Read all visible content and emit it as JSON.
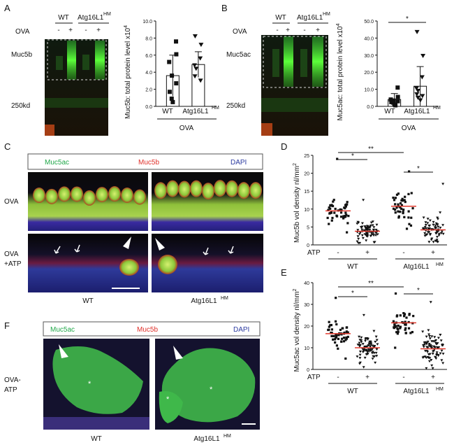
{
  "panels": {
    "A": {
      "letter": "A",
      "blot": {
        "headers": [
          "WT",
          "Atg16L1",
          "HM"
        ],
        "treatment_label": "OVA",
        "lanes": [
          "-",
          "+",
          "-",
          "+"
        ],
        "band_label": "Muc5b",
        "marker": "250kd"
      },
      "chart": {
        "ylabel_main": "Muc5b: total protein level x10",
        "ylabel_exp": "4",
        "categories": [
          "WT",
          "Atg16L1",
          "HM"
        ],
        "group_label": "OVA"
      }
    },
    "B": {
      "letter": "B",
      "blot": {
        "headers": [
          "WT",
          "Atg16L1",
          "HM"
        ],
        "treatment_label": "OVA",
        "lanes": [
          "-",
          "+",
          "-",
          "+"
        ],
        "band_label": "Muc5ac",
        "marker": "250kd"
      },
      "chart": {
        "ylabel_main": "Muc5ac: total protein level x10",
        "ylabel_exp": "4",
        "categories": [
          "WT",
          "Atg16L1",
          "HM"
        ],
        "group_label": "OVA",
        "significance": "*"
      }
    },
    "C": {
      "letter": "C",
      "legend": [
        "Muc5ac",
        "Muc5b",
        "DAPI"
      ],
      "legend_colors": [
        "#22a84a",
        "#e0302a",
        "#2b3aa0"
      ],
      "rows": [
        "OVA",
        "OVA",
        "+ATP"
      ],
      "columns": [
        "WT",
        "Atg16L1",
        "HM"
      ]
    },
    "D": {
      "letter": "D",
      "ylabel": "Muc5b vol density nl/mm",
      "ylabel_exp": "2",
      "treatment_label": "ATP",
      "lanes": [
        "-",
        "+",
        "-",
        "+"
      ],
      "groups": [
        "WT",
        "Atg16L1",
        "HM"
      ],
      "significance": [
        "*",
        "**",
        "*"
      ]
    },
    "E": {
      "letter": "E",
      "ylabel": "Muc5ac vol density nl/mm",
      "ylabel_exp": "2",
      "treatment_label": "ATP",
      "lanes": [
        "-",
        "+",
        "-",
        "+"
      ],
      "groups": [
        "WT",
        "Atg16L1",
        "HM"
      ],
      "significance": [
        "*",
        "**",
        "*"
      ]
    },
    "F": {
      "letter": "F",
      "legend": [
        "Muc5ac",
        "Muc5b",
        "DAPI"
      ],
      "legend_colors": [
        "#22a84a",
        "#e0302a",
        "#2b3aa0"
      ],
      "row": [
        "OVA-",
        "ATP"
      ],
      "columns": [
        "WT",
        "Atg16L1",
        "HM"
      ],
      "asterisk": "*"
    }
  },
  "chart_data": [
    {
      "type": "bar",
      "panel": "A",
      "categories": [
        "WT",
        "Atg16L1 HM"
      ],
      "values": [
        3.6,
        4.9
      ],
      "errors": [
        2.4,
        1.5
      ],
      "points": [
        [
          7.6,
          6.1,
          5.2,
          3.6,
          2.7,
          1.7,
          0.9,
          0.5
        ],
        [
          8.2,
          7.2,
          5.6,
          4.8,
          4.4,
          3.5,
          3.0
        ]
      ],
      "ylim": [
        0,
        10
      ],
      "yticks": [
        "0.0",
        "2.0",
        "4.0",
        "6.0",
        "8.0",
        "10.0"
      ]
    },
    {
      "type": "bar",
      "panel": "B",
      "categories": [
        "WT",
        "Atg16L1 HM"
      ],
      "values": [
        4.0,
        11.8
      ],
      "errors": [
        3.5,
        11.5
      ],
      "points": [
        [
          11.0,
          5.5,
          4.0,
          3.4,
          3.0,
          2.5,
          2.2,
          1.0,
          0.6
        ],
        [
          43.5,
          29.5,
          17.0,
          10.5,
          9.0,
          7.0,
          6.0,
          5.0,
          3.5
        ]
      ],
      "ylim": [
        0,
        50
      ],
      "yticks": [
        "0.0",
        "10.0",
        "20.0",
        "30.0",
        "40.0",
        "50.0"
      ]
    },
    {
      "type": "scatter",
      "panel": "D",
      "categories": [
        "WT -",
        "WT +",
        "Atg16L1 HM -",
        "Atg16L1 HM +"
      ],
      "ylim": [
        0,
        25
      ],
      "yticks": [
        "0",
        "5",
        "10",
        "15",
        "20",
        "25"
      ],
      "series": [
        {
          "center": 9.5,
          "spread": 2.8,
          "count": 45,
          "min": 3.5,
          "max": 24
        },
        {
          "center": 3.8,
          "spread": 2.3,
          "count": 75,
          "min": 0.5,
          "max": 12.5
        },
        {
          "center": 10.8,
          "spread": 3.2,
          "count": 40,
          "min": 4.5,
          "max": 20.5
        },
        {
          "center": 4.2,
          "spread": 2.6,
          "count": 70,
          "min": 0.8,
          "max": 17
        }
      ]
    },
    {
      "type": "scatter",
      "panel": "E",
      "categories": [
        "WT -",
        "WT +",
        "Atg16L1 HM -",
        "Atg16L1 HM +"
      ],
      "ylim": [
        0,
        40
      ],
      "yticks": [
        "0",
        "10",
        "20",
        "30",
        "40"
      ],
      "series": [
        {
          "center": 16.5,
          "spread": 4.5,
          "count": 50,
          "min": 5,
          "max": 33
        },
        {
          "center": 10,
          "spread": 4.6,
          "count": 80,
          "min": 1,
          "max": 25
        },
        {
          "center": 21.5,
          "spread": 5.2,
          "count": 45,
          "min": 10,
          "max": 35
        },
        {
          "center": 9.5,
          "spread": 5.3,
          "count": 80,
          "min": 0.5,
          "max": 31
        }
      ]
    }
  ]
}
